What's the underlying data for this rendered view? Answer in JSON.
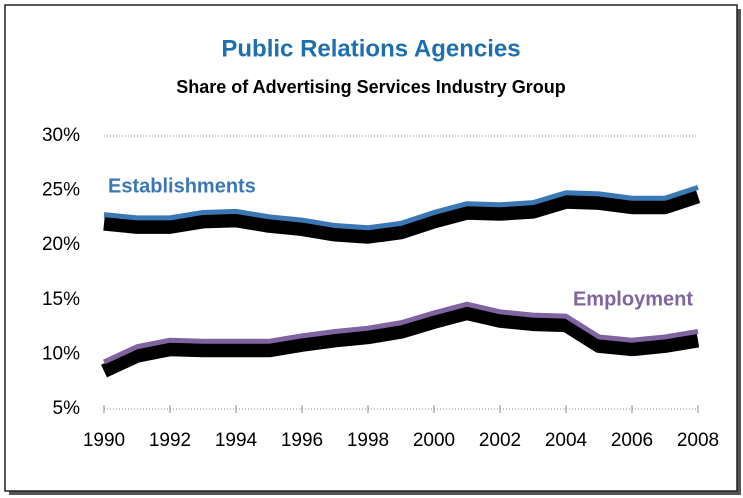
{
  "chart_data": {
    "type": "line",
    "title": "Public Relations Agencies",
    "subtitle": "Share of Advertising Services Industry Group",
    "x": [
      1990,
      1991,
      1992,
      1993,
      1994,
      1995,
      1996,
      1997,
      1998,
      1999,
      2000,
      2001,
      2002,
      2003,
      2004,
      2005,
      2006,
      2007,
      2008
    ],
    "series": [
      {
        "name": "Establishments",
        "color": "#3a78b5",
        "values": [
          22.8,
          22.5,
          22.5,
          23.0,
          23.1,
          22.6,
          22.3,
          21.8,
          21.6,
          22.0,
          23.0,
          23.8,
          23.7,
          23.9,
          24.8,
          24.7,
          24.3,
          24.3,
          25.3
        ]
      },
      {
        "name": "Employment",
        "color": "#8064a2",
        "values": [
          9.3,
          10.7,
          11.3,
          11.2,
          11.2,
          11.2,
          11.7,
          12.1,
          12.4,
          12.9,
          13.8,
          14.6,
          13.9,
          13.6,
          13.5,
          11.6,
          11.3,
          11.6,
          12.1
        ]
      }
    ],
    "xlim": [
      1990,
      2008
    ],
    "xticks": [
      1990,
      1992,
      1994,
      1996,
      1998,
      2000,
      2002,
      2004,
      2006,
      2008
    ],
    "ylim": [
      5,
      30
    ],
    "yticks": [
      {
        "value": 5,
        "label": "5%"
      },
      {
        "value": 10,
        "label": "10%"
      },
      {
        "value": 15,
        "label": "15%"
      },
      {
        "value": 20,
        "label": "20%"
      },
      {
        "value": 25,
        "label": "25%"
      },
      {
        "value": 30,
        "label": "30%"
      }
    ]
  }
}
